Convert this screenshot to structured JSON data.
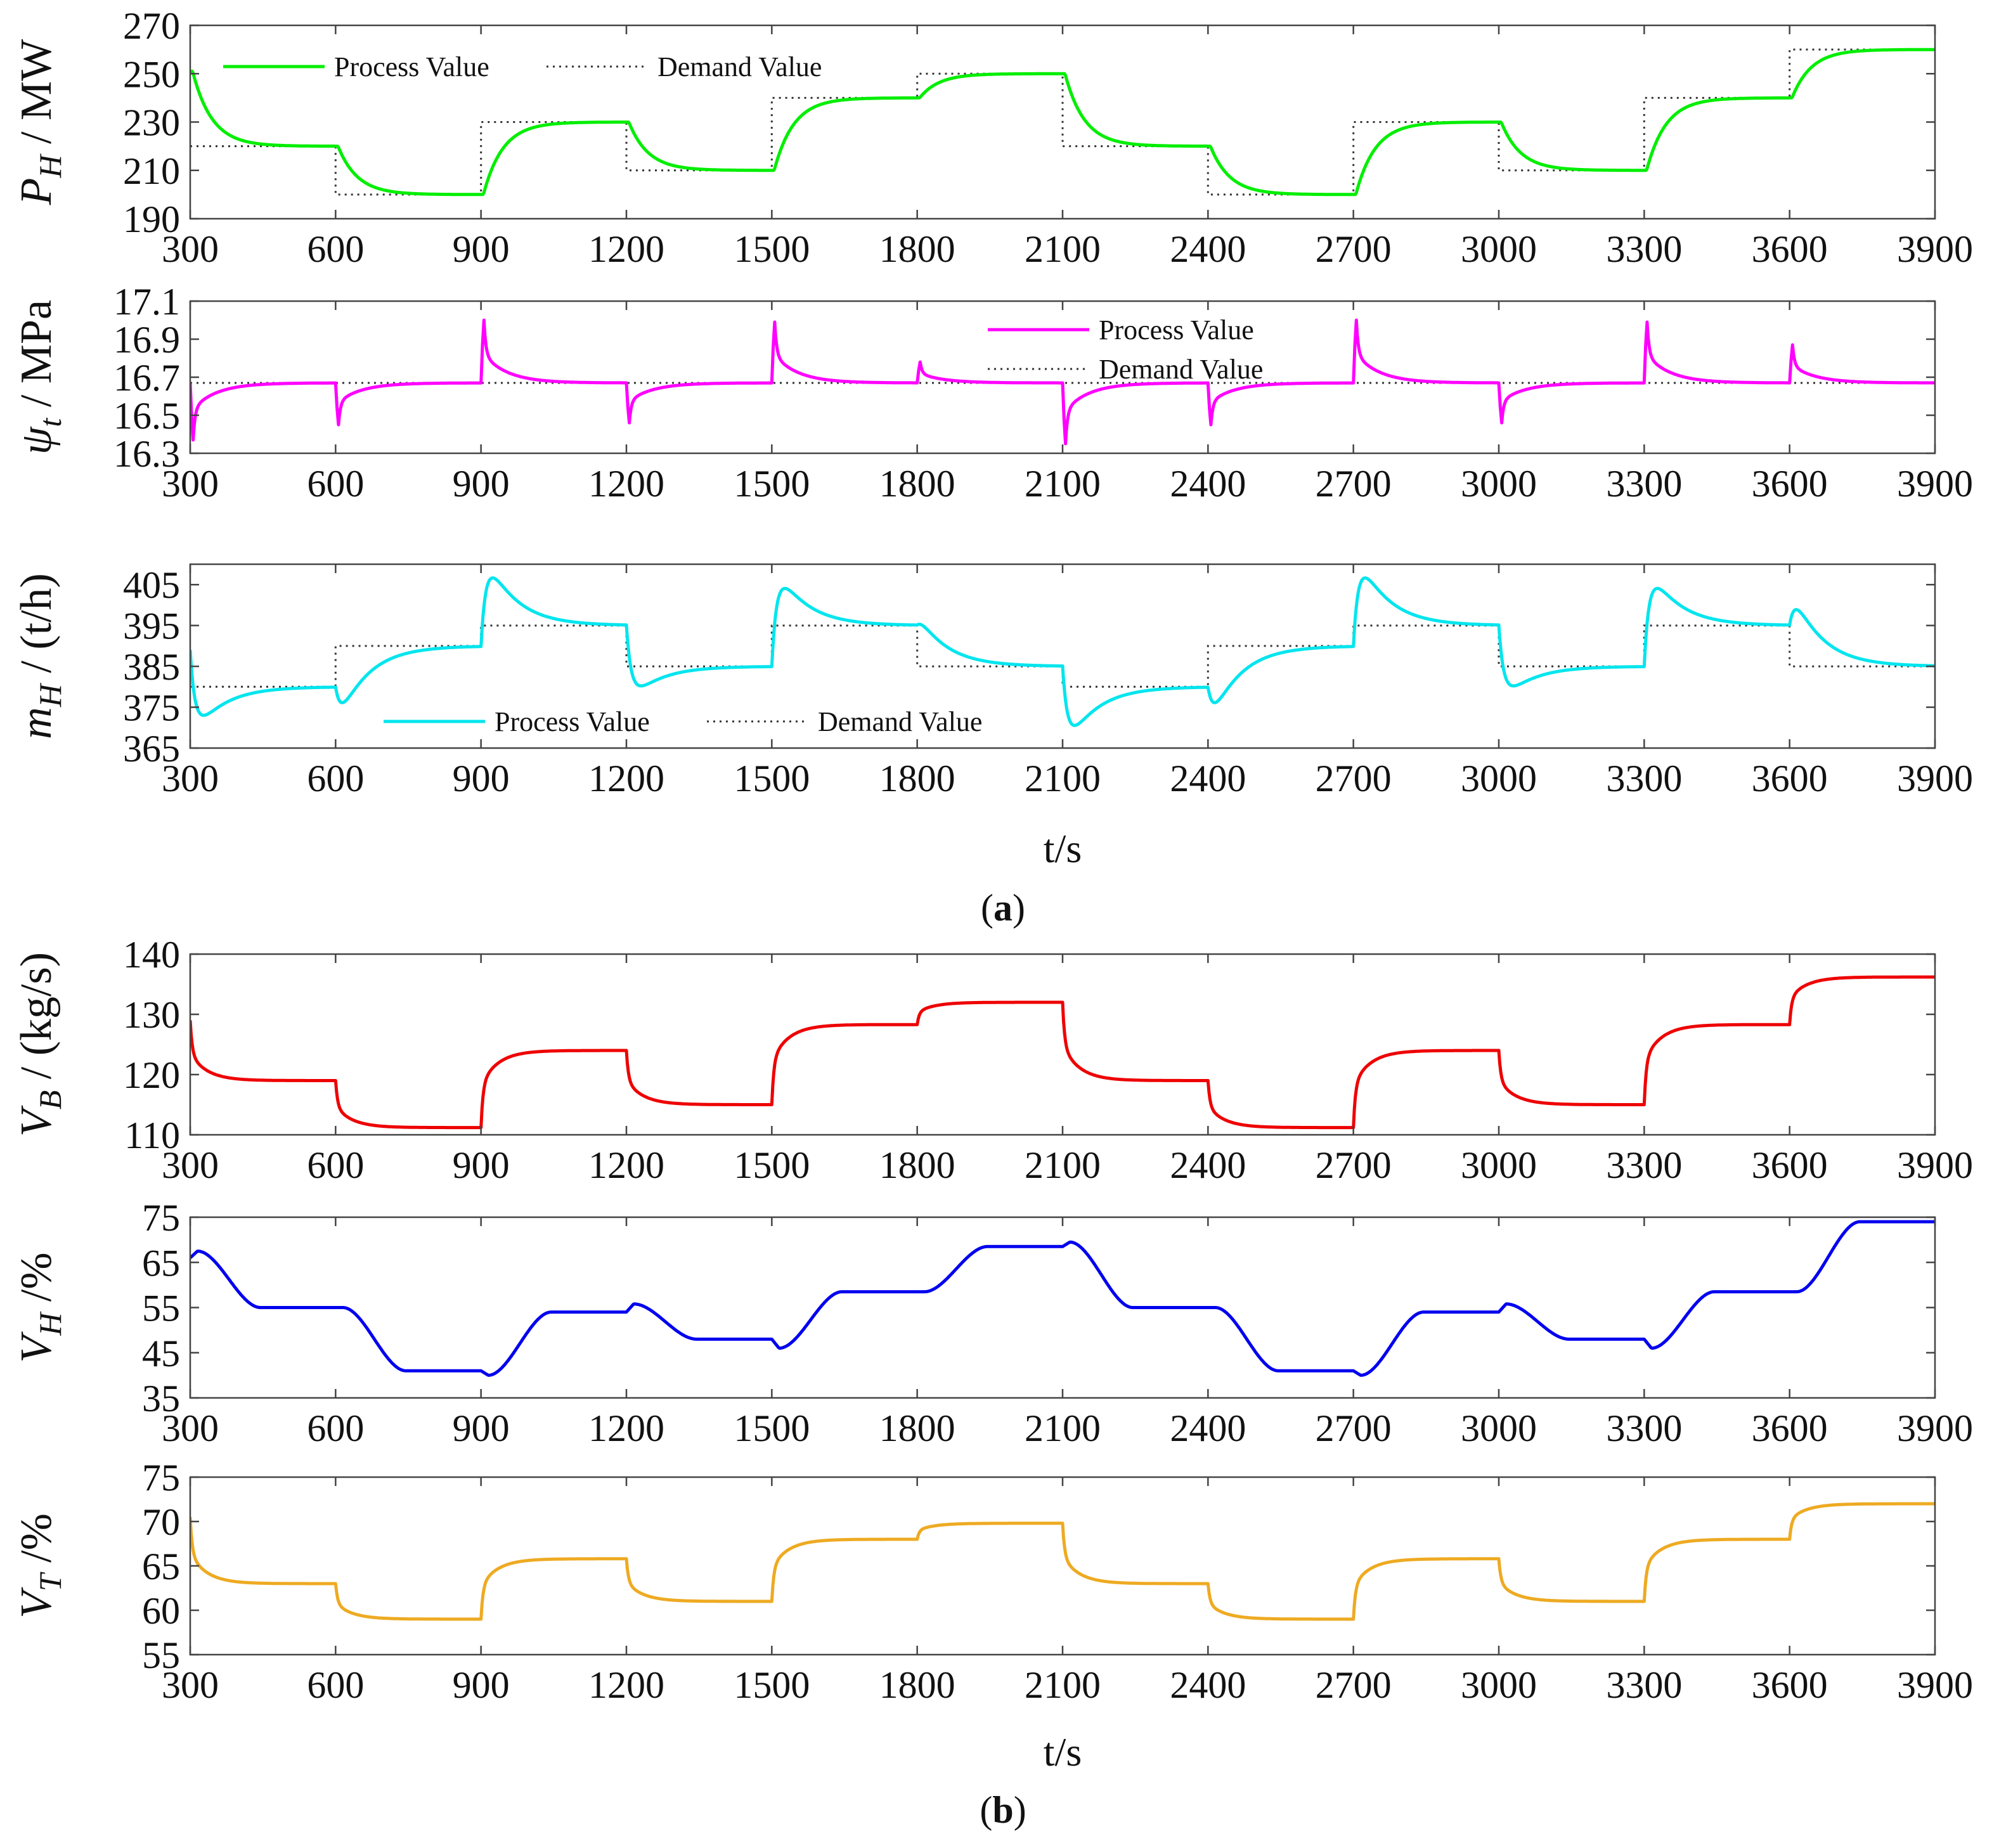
{
  "figure": {
    "label_a": "a",
    "label_b": "b",
    "x_axis_label": "t/s"
  },
  "colors": {
    "P_H": "#00ee00",
    "psi_t": "#ff00ff",
    "m_H": "#00e5ee",
    "V_B": "#ee0000",
    "V_H": "#0000ee",
    "V_T": "#eeaa22",
    "demand": "#333333",
    "axis": "#444444"
  },
  "chart_data": [
    {
      "type": "line",
      "id": "PH",
      "group": "a",
      "ylabel": {
        "symbol": "P",
        "sub": "H",
        "unit": " / MW"
      },
      "xlim": [
        300,
        3900
      ],
      "ylim": [
        190,
        270
      ],
      "xticks": [
        300,
        600,
        900,
        1200,
        1500,
        1800,
        2100,
        2400,
        2700,
        3000,
        3300,
        3600,
        3900
      ],
      "yticks": [
        190,
        210,
        230,
        250,
        270
      ],
      "legend_position": "top-left",
      "series": [
        {
          "name": "Process Value",
          "style": "solid",
          "color_key": "P_H"
        },
        {
          "name": "Demand Value",
          "style": "dotted",
          "color_key": "demand"
        }
      ],
      "demand_steps": [
        [
          300,
          600,
          220
        ],
        [
          600,
          900,
          200
        ],
        [
          900,
          1200,
          230
        ],
        [
          1200,
          1500,
          210
        ],
        [
          1500,
          1800,
          240
        ],
        [
          1800,
          2100,
          250
        ],
        [
          2100,
          2400,
          220
        ],
        [
          2400,
          2700,
          200
        ],
        [
          2700,
          3000,
          230
        ],
        [
          3000,
          3300,
          210
        ],
        [
          3300,
          3600,
          240
        ],
        [
          3600,
          3900,
          260
        ]
      ],
      "initial_value": 251,
      "time_constant_s": 40,
      "delay_s": 5
    },
    {
      "type": "line",
      "id": "psi",
      "group": "a",
      "ylabel": {
        "symbol": "ψ",
        "sub": "t",
        "unit": " / MPa"
      },
      "xlim": [
        300,
        3900
      ],
      "ylim": [
        16.3,
        17.1
      ],
      "xticks": [
        300,
        600,
        900,
        1200,
        1500,
        1800,
        2100,
        2400,
        2700,
        3000,
        3300,
        3600,
        3900
      ],
      "yticks": [
        16.3,
        16.5,
        16.7,
        16.9,
        17.1
      ],
      "legend_position": "top-center",
      "series": [
        {
          "name": "Process Value",
          "style": "solid",
          "color_key": "psi_t"
        },
        {
          "name": "Demand Value",
          "style": "dotted",
          "color_key": "demand"
        }
      ],
      "demand_constant": 16.67,
      "spikes": [
        [
          300,
          16.37
        ],
        [
          600,
          16.45
        ],
        [
          900,
          17.0
        ],
        [
          1200,
          16.46
        ],
        [
          1500,
          16.99
        ],
        [
          1800,
          16.78
        ],
        [
          2100,
          16.35
        ],
        [
          2400,
          16.45
        ],
        [
          2700,
          17.0
        ],
        [
          3000,
          16.46
        ],
        [
          3300,
          16.99
        ],
        [
          3600,
          16.87
        ]
      ]
    },
    {
      "type": "line",
      "id": "mH",
      "group": "a",
      "ylabel": {
        "symbol": "m",
        "sub": "H",
        "unit": " / (t/h)"
      },
      "xlim": [
        300,
        3900
      ],
      "ylim": [
        365,
        410
      ],
      "xticks": [
        300,
        600,
        900,
        1200,
        1500,
        1800,
        2100,
        2400,
        2700,
        3000,
        3300,
        3600,
        3900
      ],
      "yticks": [
        365,
        375,
        385,
        395,
        405
      ],
      "legend_position": "bottom-left",
      "series": [
        {
          "name": "Process Value",
          "style": "solid",
          "color_key": "m_H"
        },
        {
          "name": "Demand Value",
          "style": "dotted",
          "color_key": "demand"
        }
      ],
      "demand_steps": [
        [
          300,
          600,
          380
        ],
        [
          600,
          900,
          390
        ],
        [
          900,
          1200,
          395
        ],
        [
          1200,
          1500,
          385
        ],
        [
          1500,
          1800,
          395
        ],
        [
          1800,
          2100,
          385
        ],
        [
          2100,
          2400,
          380
        ],
        [
          2400,
          2700,
          390
        ],
        [
          2700,
          3000,
          395
        ],
        [
          3000,
          3300,
          385
        ],
        [
          3300,
          3600,
          395
        ],
        [
          3600,
          3900,
          385
        ]
      ],
      "start_value": 389,
      "extremes": [
        373,
        379,
        406,
        380,
        404,
        392,
        371,
        379,
        406,
        380,
        404,
        396
      ]
    },
    {
      "type": "line",
      "id": "VB",
      "group": "b",
      "ylabel": {
        "symbol": "V",
        "sub": "B",
        "unit": " / (kg/s)"
      },
      "xlim": [
        300,
        3900
      ],
      "ylim": [
        110,
        140
      ],
      "xticks": [
        300,
        600,
        900,
        1200,
        1500,
        1800,
        2100,
        2400,
        2700,
        3000,
        3300,
        3600,
        3900
      ],
      "yticks": [
        110,
        120,
        130,
        140
      ],
      "series": [
        {
          "name": "",
          "style": "solid",
          "color_key": "V_B"
        }
      ],
      "steps": [
        [
          300,
          600,
          119
        ],
        [
          600,
          900,
          111.2
        ],
        [
          900,
          1200,
          124
        ],
        [
          1200,
          1500,
          115
        ],
        [
          1500,
          1800,
          128.3
        ],
        [
          1800,
          2100,
          132
        ],
        [
          2100,
          2400,
          119
        ],
        [
          2400,
          2700,
          111.2
        ],
        [
          2700,
          3000,
          124
        ],
        [
          3000,
          3300,
          115
        ],
        [
          3300,
          3600,
          128.3
        ],
        [
          3600,
          3900,
          136.2
        ]
      ],
      "initial_value": 129,
      "time_constant_s": 35
    },
    {
      "type": "line",
      "id": "VH",
      "group": "b",
      "ylabel": {
        "symbol": "V",
        "sub": "H",
        "unit": " /%"
      },
      "xlim": [
        300,
        3900
      ],
      "ylim": [
        35,
        75
      ],
      "xticks": [
        300,
        600,
        900,
        1200,
        1500,
        1800,
        2100,
        2400,
        2700,
        3000,
        3300,
        3600,
        3900
      ],
      "yticks": [
        35,
        45,
        55,
        65,
        75
      ],
      "series": [
        {
          "name": "",
          "style": "solid",
          "color_key": "V_H"
        }
      ],
      "steps": [
        [
          300,
          600,
          55
        ],
        [
          600,
          900,
          41
        ],
        [
          900,
          1200,
          54
        ],
        [
          1200,
          1500,
          48
        ],
        [
          1500,
          1800,
          58.5
        ],
        [
          1800,
          2100,
          68.5
        ],
        [
          2100,
          2400,
          55
        ],
        [
          2400,
          2700,
          41
        ],
        [
          2700,
          3000,
          54
        ],
        [
          3000,
          3300,
          48
        ],
        [
          3300,
          3600,
          58.5
        ],
        [
          3600,
          3900,
          74
        ]
      ],
      "start_value": 66,
      "kicks": [
        [
          300,
          67.5
        ],
        [
          900,
          40
        ],
        [
          1200,
          55.8
        ],
        [
          1500,
          46
        ],
        [
          2100,
          69.5
        ],
        [
          2700,
          40
        ],
        [
          3000,
          55.8
        ],
        [
          3300,
          46
        ]
      ]
    },
    {
      "type": "line",
      "id": "VT",
      "group": "b",
      "ylabel": {
        "symbol": "V",
        "sub": "T",
        "unit": " /%"
      },
      "xlim": [
        300,
        3900
      ],
      "ylim": [
        55,
        75
      ],
      "xticks": [
        300,
        600,
        900,
        1200,
        1500,
        1800,
        2100,
        2400,
        2700,
        3000,
        3300,
        3600,
        3900
      ],
      "yticks": [
        55,
        60,
        65,
        70,
        75
      ],
      "series": [
        {
          "name": "",
          "style": "solid",
          "color_key": "V_T"
        }
      ],
      "steps": [
        [
          300,
          600,
          63
        ],
        [
          600,
          900,
          59
        ],
        [
          900,
          1200,
          65.8
        ],
        [
          1200,
          1500,
          61
        ],
        [
          1500,
          1800,
          68
        ],
        [
          1800,
          2100,
          69.8
        ],
        [
          2100,
          2400,
          63
        ],
        [
          2400,
          2700,
          59
        ],
        [
          2700,
          3000,
          65.8
        ],
        [
          3000,
          3300,
          61
        ],
        [
          3300,
          3600,
          68
        ],
        [
          3600,
          3900,
          72
        ]
      ],
      "initial_value": 70.5,
      "time_constant_s": 35
    }
  ]
}
